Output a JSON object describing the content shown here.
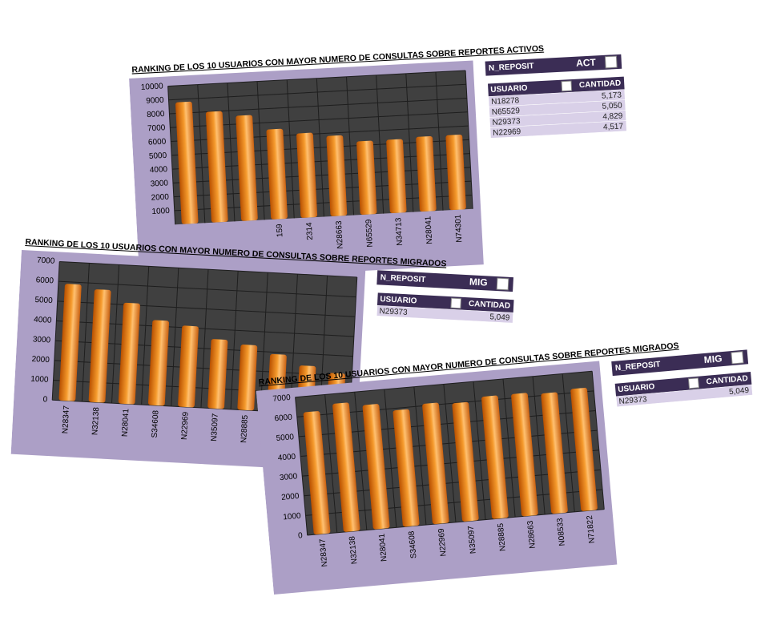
{
  "chart_data": [
    {
      "type": "bar",
      "title": "RANKING DE LOS 10 USUARIOS CON MAYOR NUMERO DE CONSULTAS SOBRE REPORTES ACTIVOS",
      "categories": [
        null,
        null,
        null,
        "159",
        "2314",
        "N28663",
        "N65529",
        "N34713",
        "N28041",
        "N74301"
      ],
      "values": [
        8800,
        8000,
        7600,
        6500,
        6100,
        5800,
        5300,
        5300,
        5400,
        5400
      ],
      "color": "#f59a2c",
      "ylim": [
        0,
        10000
      ],
      "yticks": [
        1000,
        2000,
        3000,
        4000,
        5000,
        6000,
        7000,
        8000,
        9000,
        10000
      ],
      "grid": true
    },
    {
      "type": "bar",
      "title": "RANKING DE LOS 10 USUARIOS CON MAYOR NUMERO DE CONSULTAS SOBRE REPORTES MIGRADOS",
      "categories": [
        "N28347",
        "N32138",
        "N28041",
        "S34608",
        "N22969",
        "N35097",
        "N28885",
        null,
        null,
        null
      ],
      "values": [
        5900,
        5700,
        5100,
        4300,
        4100,
        3500,
        3300,
        2900,
        2400,
        2100
      ],
      "color": "#f59a2c",
      "ylim": [
        0,
        7000
      ],
      "yticks": [
        0,
        1000,
        2000,
        3000,
        4000,
        5000,
        6000,
        7000
      ],
      "grid": true
    },
    {
      "type": "bar",
      "title": "RANKING DE LOS 10 USUARIOS CON MAYOR NUMERO DE CONSULTAS SOBRE REPORTES MIGRADOS",
      "categories": [
        "N28347",
        "N32138",
        "N28041",
        "S34608",
        "N22969",
        "N35097",
        "N28885",
        "N28663",
        "N08533",
        "N71822"
      ],
      "values": [
        6200,
        6500,
        6300,
        5900,
        6100,
        6000,
        6200,
        6200,
        6100,
        6200
      ],
      "color": "#f59a2c",
      "ylim": [
        0,
        7000
      ],
      "yticks": [
        0,
        1000,
        2000,
        3000,
        4000,
        5000,
        6000,
        7000
      ],
      "grid": true
    }
  ],
  "pivots": [
    {
      "filter_label": "N_REPOSIT",
      "filter_value": "ACT",
      "headers": [
        "USUARIO",
        "CANTIDAD"
      ],
      "rows": [
        [
          "N18278",
          "5,173"
        ],
        [
          "N65529",
          "5,050"
        ],
        [
          "N29373",
          "4,829"
        ],
        [
          "N22969",
          "4,517"
        ]
      ]
    },
    {
      "filter_label": "N_REPOSIT",
      "filter_value": "MIG",
      "headers": [
        "USUARIO",
        "CANTIDAD"
      ],
      "rows": [
        [
          "N29373",
          "5,049"
        ]
      ]
    },
    {
      "filter_label": "N_REPOSIT",
      "filter_value": "MIG",
      "headers": [
        "USUARIO",
        "CANTIDAD"
      ],
      "rows": [
        [
          "N29373",
          "5,049"
        ]
      ]
    }
  ]
}
